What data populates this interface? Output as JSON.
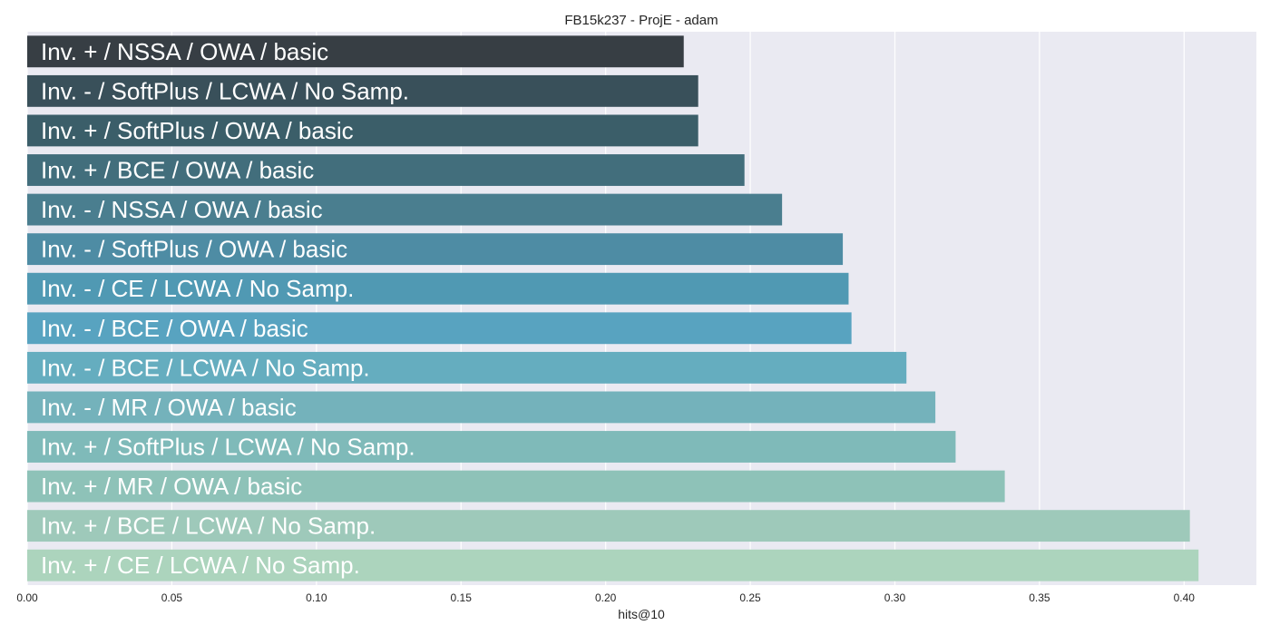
{
  "chart_data": {
    "type": "bar",
    "orientation": "horizontal",
    "title": "FB15k237 - ProjE - adam",
    "xlabel": "hits@10",
    "ylabel": "",
    "xlim": [
      0,
      0.425
    ],
    "x_ticks": [
      0.0,
      0.05,
      0.1,
      0.15,
      0.2,
      0.25,
      0.3,
      0.35,
      0.4
    ],
    "x_tick_labels": [
      "0.00",
      "0.05",
      "0.10",
      "0.15",
      "0.20",
      "0.25",
      "0.30",
      "0.35",
      "0.40"
    ],
    "grid": true,
    "categories": [
      "Inv. + / NSSA / OWA / basic",
      "Inv. - / SoftPlus / LCWA / No Samp.",
      "Inv. + / SoftPlus / OWA / basic",
      "Inv. + / BCE / OWA / basic",
      "Inv. - / NSSA / OWA / basic",
      "Inv. - / SoftPlus / OWA / basic",
      "Inv. - / CE / LCWA / No Samp.",
      "Inv. - / BCE / OWA / basic",
      "Inv. - / BCE / LCWA / No Samp.",
      "Inv. - / MR / OWA / basic",
      "Inv. + / SoftPlus / LCWA / No Samp.",
      "Inv. + / MR / OWA / basic",
      "Inv. + / BCE / LCWA / No Samp.",
      "Inv. + / CE / LCWA / No Samp."
    ],
    "values": [
      0.227,
      0.232,
      0.232,
      0.248,
      0.261,
      0.282,
      0.284,
      0.285,
      0.304,
      0.314,
      0.321,
      0.338,
      0.402,
      0.405
    ],
    "colors": [
      "#373e44",
      "#39505a",
      "#3b5e69",
      "#426e7c",
      "#4a7e8f",
      "#4e8ca4",
      "#5099b3",
      "#58a3c0",
      "#65adbf",
      "#74b2bb",
      "#7fbab9",
      "#8ec2b8",
      "#9ec9ba",
      "#acd4bd"
    ],
    "plot_background": "#eaeaf2",
    "grid_color": "#ffffff"
  }
}
